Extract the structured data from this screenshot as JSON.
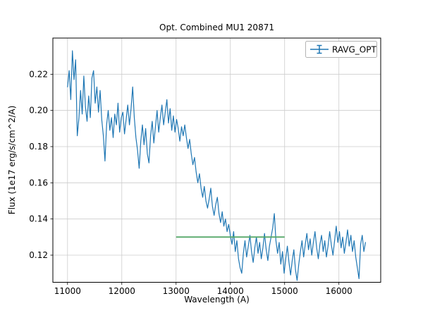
{
  "chart_data": {
    "type": "line",
    "title": "Opt. Combined MU1 20871",
    "xlabel": "Wavelength (A)",
    "ylabel": "Flux (1e17 erg/s/cm^2/A)",
    "xlim": [
      10730,
      16770
    ],
    "ylim": [
      0.105,
      0.24
    ],
    "grid": true,
    "x_ticks": {
      "values": [
        11000,
        12000,
        13000,
        14000,
        15000,
        16000
      ],
      "labels": [
        "11000",
        "12000",
        "13000",
        "14000",
        "15000",
        "16000"
      ]
    },
    "y_ticks": {
      "values": [
        0.12,
        0.14,
        0.16,
        0.18,
        0.2,
        0.22
      ],
      "labels": [
        "0.12",
        "0.14",
        "0.16",
        "0.18",
        "0.20",
        "0.22"
      ]
    },
    "legend": {
      "position": "upper right",
      "entries": [
        {
          "label": "RAVG_OPT",
          "color": "#1f77b4",
          "marker": "errorbar"
        }
      ]
    },
    "series": [
      {
        "name": "RAVG_OPT",
        "type": "errorbar-line",
        "color": "#1f77b4",
        "x_start": 11000,
        "x_step": 30,
        "values": [
          0.213,
          0.222,
          0.206,
          0.233,
          0.217,
          0.228,
          0.186,
          0.196,
          0.211,
          0.198,
          0.219,
          0.202,
          0.194,
          0.208,
          0.196,
          0.218,
          0.222,
          0.204,
          0.213,
          0.199,
          0.211,
          0.195,
          0.186,
          0.172,
          0.192,
          0.2,
          0.189,
          0.196,
          0.185,
          0.198,
          0.192,
          0.204,
          0.188,
          0.196,
          0.199,
          0.187,
          0.195,
          0.203,
          0.192,
          0.201,
          0.213,
          0.196,
          0.185,
          0.178,
          0.168,
          0.183,
          0.192,
          0.181,
          0.19,
          0.176,
          0.171,
          0.186,
          0.194,
          0.182,
          0.191,
          0.2,
          0.188,
          0.196,
          0.203,
          0.192,
          0.199,
          0.206,
          0.193,
          0.201,
          0.189,
          0.197,
          0.188,
          0.195,
          0.19,
          0.183,
          0.191,
          0.186,
          0.192,
          0.185,
          0.179,
          0.184,
          0.176,
          0.17,
          0.174,
          0.166,
          0.16,
          0.165,
          0.157,
          0.152,
          0.158,
          0.15,
          0.146,
          0.151,
          0.157,
          0.147,
          0.142,
          0.148,
          0.152,
          0.143,
          0.138,
          0.144,
          0.136,
          0.14,
          0.133,
          0.137,
          0.131,
          0.126,
          0.133,
          0.122,
          0.128,
          0.118,
          0.113,
          0.11,
          0.121,
          0.128,
          0.119,
          0.125,
          0.131,
          0.122,
          0.116,
          0.124,
          0.13,
          0.121,
          0.127,
          0.118,
          0.124,
          0.132,
          0.123,
          0.117,
          0.125,
          0.13,
          0.135,
          0.143,
          0.128,
          0.121,
          0.127,
          0.115,
          0.122,
          0.11,
          0.118,
          0.125,
          0.116,
          0.109,
          0.117,
          0.123,
          0.112,
          0.106,
          0.115,
          0.122,
          0.128,
          0.119,
          0.126,
          0.132,
          0.123,
          0.129,
          0.12,
          0.127,
          0.133,
          0.124,
          0.118,
          0.126,
          0.131,
          0.122,
          0.128,
          0.119,
          0.125,
          0.133,
          0.126,
          0.12,
          0.128,
          0.136,
          0.127,
          0.133,
          0.124,
          0.13,
          0.121,
          0.127,
          0.134,
          0.125,
          0.131,
          0.122,
          0.128,
          0.119,
          0.113,
          0.107,
          0.126,
          0.131,
          0.122,
          0.127
        ]
      },
      {
        "name": "average-line",
        "type": "hline",
        "color": "#55a868",
        "x0": 13000,
        "x1": 15000,
        "y": 0.13
      }
    ],
    "style": {
      "grid_color": "#cccccc",
      "frame_color": "#000000",
      "background": "#ffffff",
      "legend_border": "#b4b4b4"
    }
  }
}
